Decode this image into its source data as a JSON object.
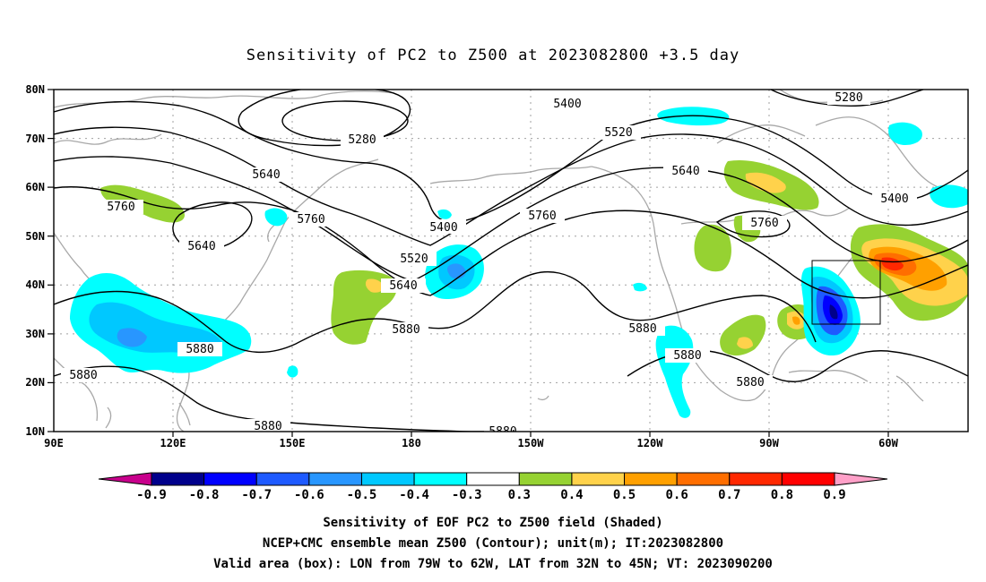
{
  "title": "Sensitivity of PC2 to Z500 at 2023082800 +3.5 day",
  "map": {
    "lat_labels": [
      "80N",
      "70N",
      "60N",
      "50N",
      "40N",
      "30N",
      "20N",
      "10N"
    ],
    "lon_labels": [
      "90E",
      "120E",
      "150E",
      "180",
      "150W",
      "120W",
      "90W",
      "60W"
    ],
    "contour_labels": [
      "5280",
      "5400",
      "5520",
      "5640",
      "5760",
      "5880"
    ],
    "valid_box": {
      "lon_min": "79W",
      "lon_max": "62W",
      "lat_min": "32N",
      "lat_max": "45N"
    }
  },
  "colorbar": {
    "labels": [
      "-0.9",
      "-0.8",
      "-0.7",
      "-0.6",
      "-0.5",
      "-0.4",
      "-0.3",
      "0.3",
      "0.4",
      "0.5",
      "0.6",
      "0.7",
      "0.8",
      "0.9"
    ],
    "colors": [
      "#c8008c",
      "#00008b",
      "#0000ff",
      "#1e5aff",
      "#2896ff",
      "#00c8ff",
      "#00ffff",
      "#ffffff",
      "#96d232",
      "#ffd24b",
      "#ffa000",
      "#ff6e00",
      "#ff2800",
      "#ff0000",
      "#ffa0c8"
    ]
  },
  "footer": {
    "line1": "Sensitivity of EOF PC2 to Z500 field (Shaded)",
    "line2": "NCEP+CMC ensemble mean Z500 (Contour); unit(m); IT:2023082800",
    "line3": "Valid area (box): LON from 79W to 62W, LAT from 32N to 45N; VT: 2023090200"
  }
}
